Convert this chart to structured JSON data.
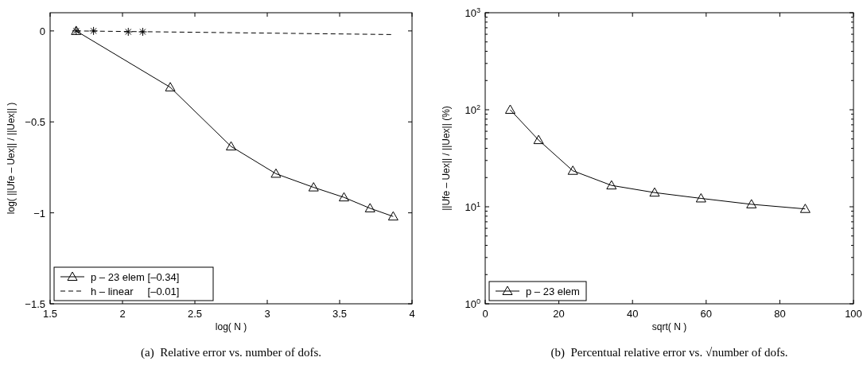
{
  "chart_data": [
    {
      "type": "line",
      "xlabel": "log( N )",
      "ylabel": "log( ||Ufe – Uex|| / ||Uex|| )",
      "annotations": [
        "(a)  Relative error vs. number of dofs."
      ],
      "xlim": [
        1.5,
        4
      ],
      "xticks": [
        {
          "value": 1.5,
          "label": "1.5"
        },
        2,
        2.5,
        3,
        3.5,
        4
      ],
      "ylim": [
        -1.5,
        0.1
      ],
      "yticks": [
        {
          "value": -1.5,
          "label": "−1.5"
        },
        {
          "value": -1,
          "label": "−1"
        },
        {
          "value": -0.5,
          "label": "−0.5"
        },
        0
      ],
      "grid": false,
      "legend": "bottom left",
      "series": [
        {
          "name": "p – 23 elem [–0.34]",
          "color": "#000000",
          "marker": "triangle",
          "line_style": "solid",
          "x": [
            1.68,
            2.33,
            2.75,
            3.06,
            3.32,
            3.53,
            3.71,
            3.87
          ],
          "values": [
            0,
            -0.31,
            -0.635,
            -0.785,
            -0.86,
            -0.915,
            -0.975,
            -1.02
          ]
        },
        {
          "name": "h – linear     [–0.01]",
          "color": "#000000",
          "marker": "none",
          "line_style": "dashed",
          "x": [
            1.68,
            3.87
          ],
          "values": [
            0,
            -0.02
          ]
        },
        {
          "type": "scatter",
          "color": "#000000",
          "marker": "cross",
          "x": [
            1.68,
            1.8,
            2.04,
            2.14
          ],
          "values": [
            0,
            0,
            -0.005,
            -0.005
          ]
        }
      ]
    },
    {
      "type": "line",
      "xlabel": "sqrt( N )",
      "ylabel": "||Ufe – Uex|| / ||Uex|| (%)",
      "annotations": [
        "(b)  Percentual relative error vs. √number of dofs."
      ],
      "log": "y",
      "xlim": [
        0,
        100
      ],
      "xticks": [
        0,
        20,
        40,
        60,
        80,
        100
      ],
      "ylim": [
        1,
        1000
      ],
      "yticks": [
        {
          "value": 1,
          "label": "10$^{0}$"
        },
        {
          "value": 10,
          "label": "10$^{1}$"
        },
        {
          "value": 100,
          "label": "10$^{2}$"
        },
        {
          "value": 1000,
          "label": "10$^{3}$"
        }
      ],
      "grid": false,
      "legend": "bottom left",
      "series": [
        {
          "name": "p – 23 elem",
          "color": "#000000",
          "marker": "triangle",
          "line_style": "solid",
          "x": [
            6.8,
            14.5,
            23.8,
            34.3,
            46.0,
            58.6,
            72.3,
            86.9
          ],
          "values": [
            100,
            48.7,
            23.5,
            16.6,
            14.0,
            12.2,
            10.6,
            9.5
          ]
        }
      ]
    }
  ]
}
